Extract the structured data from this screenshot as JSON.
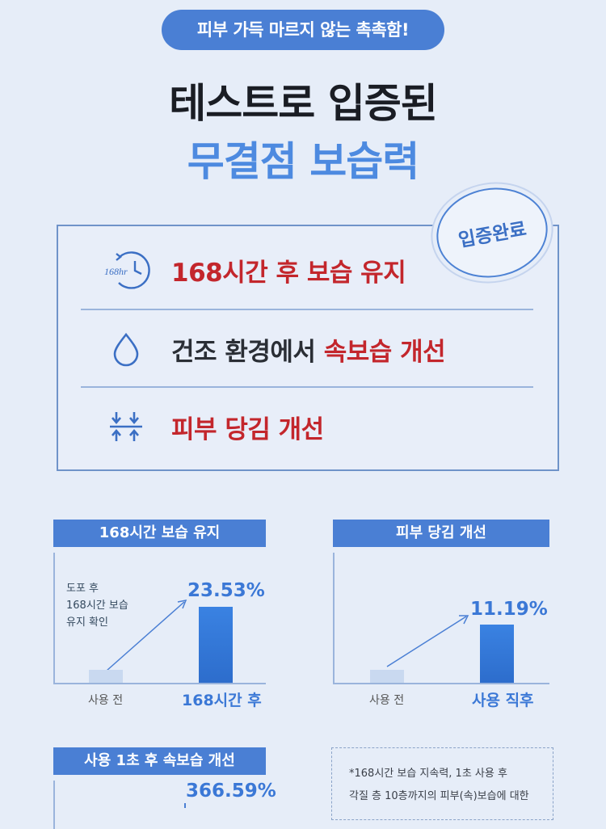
{
  "header": {
    "pill": "피부 가득 마르지 않는 촉촉함!",
    "title_line1": "테스트로 입증된",
    "title_line2": "무결점 보습력"
  },
  "badge": "입증완료",
  "features": [
    {
      "icon": "clock-168hr-icon",
      "icon_text": "168hr",
      "text": "168시간 후 보습 유지"
    },
    {
      "icon": "water-drop-icon",
      "text_dark": "건조 환경에서 ",
      "text_red": "속보습 개선"
    },
    {
      "icon": "compress-arrows-icon",
      "text": "피부 당김 개선"
    }
  ],
  "chart_data": [
    {
      "type": "bar",
      "title": "168시간 보습 유지",
      "categories": [
        "사용 전",
        "168시간 후"
      ],
      "values": [
        null,
        23.53
      ],
      "value_labels": [
        "",
        "23.53%"
      ],
      "annotation": [
        "도포 후",
        "168시간 보습",
        "유지 확인"
      ]
    },
    {
      "type": "bar",
      "title": "피부 당김 개선",
      "categories": [
        "사용 전",
        "사용 직후"
      ],
      "values": [
        null,
        11.19
      ],
      "value_labels": [
        "",
        "11.19%"
      ]
    },
    {
      "type": "bar",
      "title": "사용 1초 후 속보습 개선",
      "values": [
        null,
        366.59
      ],
      "value_labels": [
        "",
        "366.59%"
      ]
    }
  ],
  "footnote": [
    "*168시간 보습 지속력, 1초 사용 후",
    "각질 층 10층까지의 피부(속)보습에 대한"
  ],
  "colors": {
    "accent": "#4a7fd4",
    "highlight_red": "#c3262c",
    "background": "#e6edf8"
  }
}
